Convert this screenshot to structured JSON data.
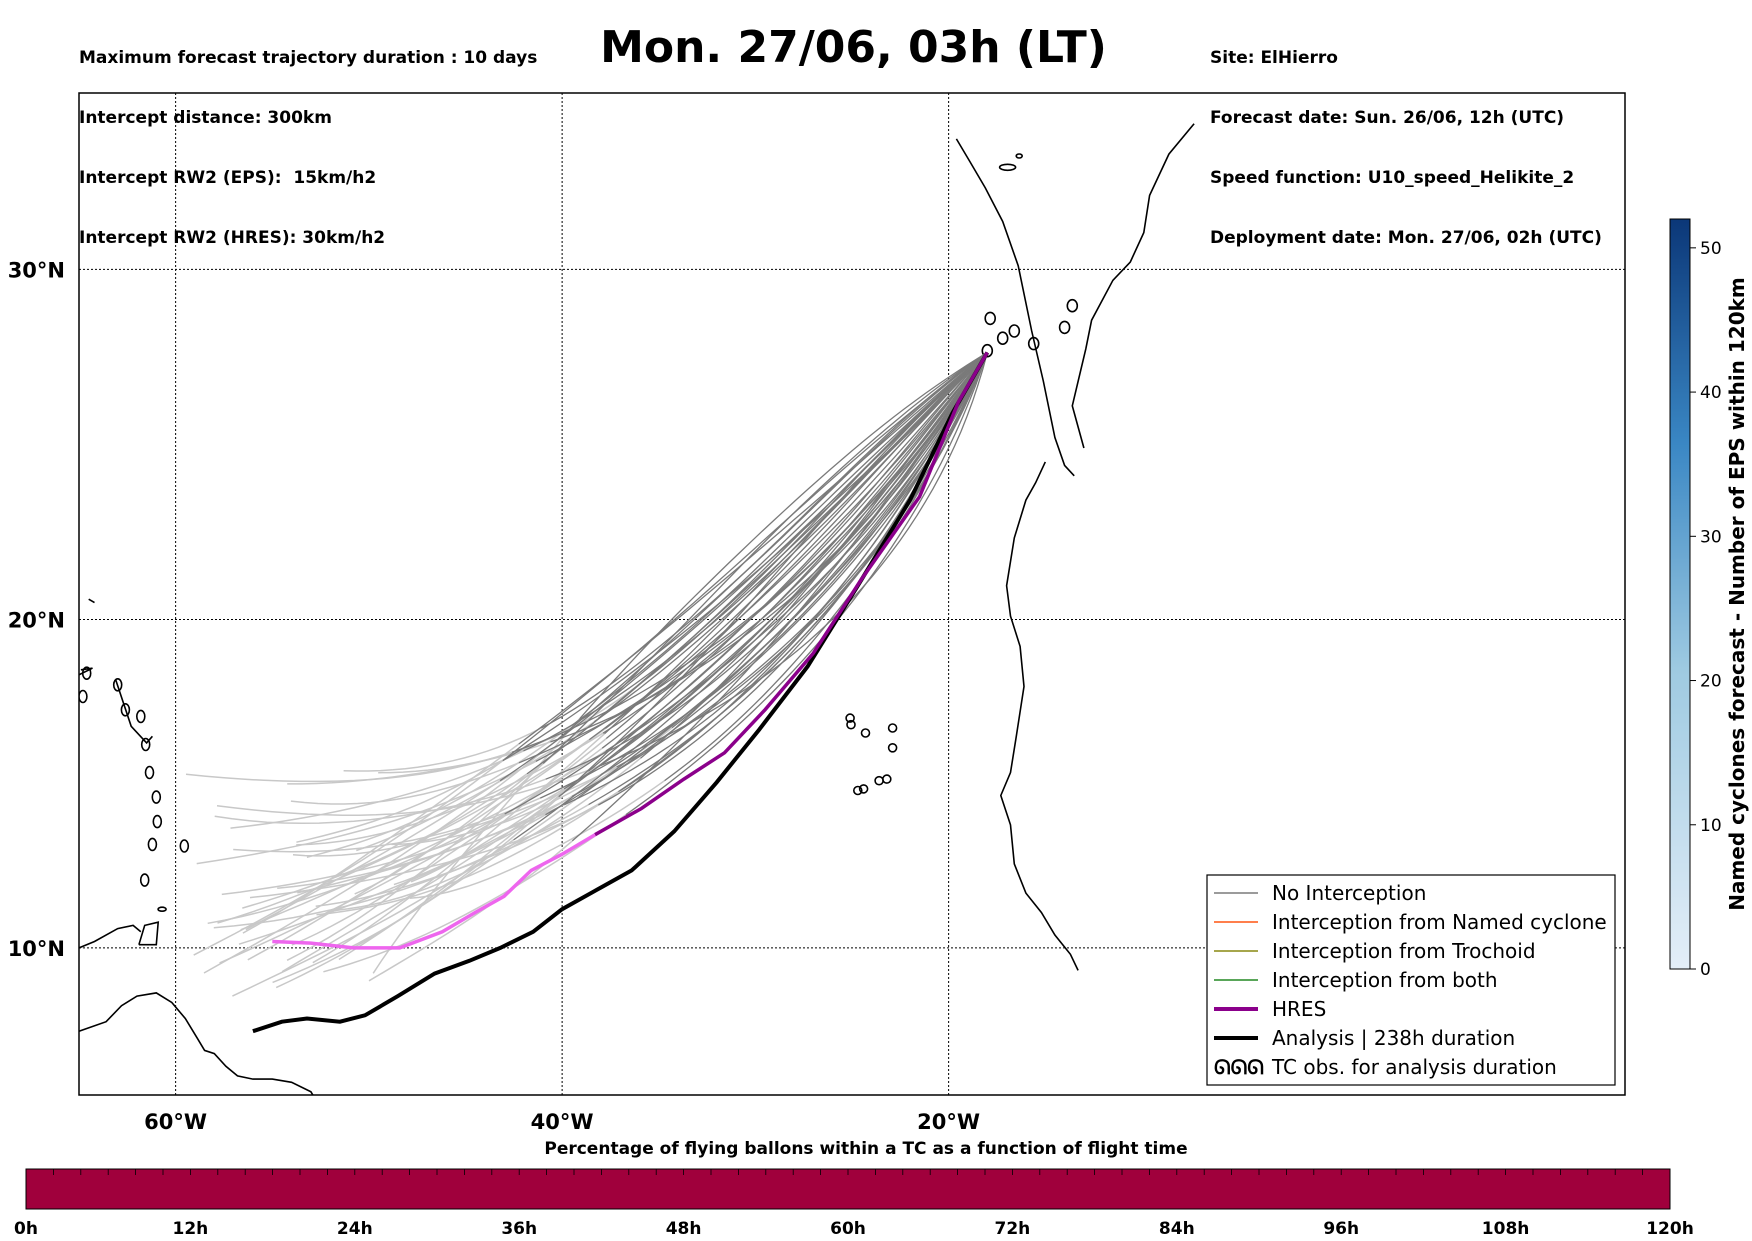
{
  "header_left": [
    "Maximum forecast trajectory duration : 10 days",
    "Intercept distance: 300km",
    "Intercept RW2 (EPS):  15km/h2",
    "Intercept RW2 (HRES): 30km/h2"
  ],
  "title": "Mon. 27/06, 03h (LT)",
  "header_right": [
    "Site: ElHierro",
    "Forecast date: Sun. 26/06, 12h (UTC)",
    "Speed function: U10_speed_Helikite_2",
    "Deployment date: Mon. 27/06, 02h (UTC)"
  ],
  "map": {
    "lon_range": [
      -65,
      15
    ],
    "lat_range": [
      5.4,
      34.7
    ],
    "lat_ticks": [
      {
        "value": 30,
        "label": "30°N"
      },
      {
        "value": 20,
        "label": "20°N"
      },
      {
        "value": 10,
        "label": "10°N"
      }
    ],
    "lon_ticks": [
      {
        "value": -60,
        "label": "60°W"
      },
      {
        "value": -40,
        "label": "40°W"
      },
      {
        "value": -20,
        "label": "20°W"
      }
    ],
    "site": {
      "lon": -18.0,
      "lat": 27.7
    },
    "colors": {
      "no_interception": "#7a7a7a",
      "no_interception_late": "#c8c8c8",
      "hres": "#8b008b",
      "hres_late": "#ee66ee",
      "analysis": "#000000",
      "coast": "#000000"
    }
  },
  "legend": {
    "items": [
      {
        "label": "No Interception",
        "color": "#7a7a7a",
        "style": "thin"
      },
      {
        "label": "Interception from Named cyclone",
        "color": "#ff5511",
        "style": "thin"
      },
      {
        "label": "Interception from Trochoid",
        "color": "#888811",
        "style": "thin"
      },
      {
        "label": "Interception from both",
        "color": "#228822",
        "style": "thin"
      },
      {
        "label": "HRES",
        "color": "#8b008b",
        "style": "thick"
      },
      {
        "label": "Analysis | 238h duration",
        "color": "#000000",
        "style": "thick"
      },
      {
        "label": "TC obs. for analysis duration",
        "color": "#000000",
        "style": "symbol",
        "symbol": "ᘏᘏᘏ"
      }
    ]
  },
  "colorbar": {
    "title": "Named cyclones forecast - Number of EPS within 120km",
    "min": 0,
    "max": 52,
    "ticks": [
      "0",
      "10",
      "20",
      "30",
      "40",
      "50"
    ],
    "tick_values": [
      0,
      10,
      20,
      30,
      40,
      50
    ],
    "color_low": "#e4eef8",
    "color_high": "#0b3778"
  },
  "percentage_bar": {
    "title": "Percentage of flying ballons within a TC as a function of flight time",
    "ticks": [
      "0h",
      "12h",
      "24h",
      "36h",
      "48h",
      "60h",
      "72h",
      "84h",
      "96h",
      "108h",
      "120h"
    ],
    "fill_color": "#a0003c",
    "value_percent": 0
  }
}
